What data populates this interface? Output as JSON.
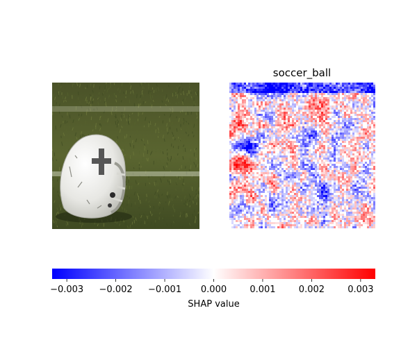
{
  "chart_data": {
    "type": "heatmap",
    "panels": [
      {
        "title": "",
        "content": "photo",
        "description_tokens": [
          "football-helmet",
          "grass-field"
        ]
      },
      {
        "title": "soccer_ball",
        "content": "shap-heatmap"
      }
    ],
    "colorbar": {
      "label": "SHAP value",
      "range": [
        -0.0033,
        0.0033
      ],
      "ticks": [
        -0.003,
        -0.002,
        -0.001,
        0.0,
        0.001,
        0.002,
        0.003
      ],
      "tick_labels": [
        "−0.003",
        "−0.002",
        "−0.001",
        "0.000",
        "0.001",
        "0.002",
        "0.003"
      ],
      "colors": {
        "negative": "#0000ff",
        "zero": "#ffffff",
        "positive": "#ff0000"
      }
    }
  },
  "colors": {
    "grass_dark": "#3e4a22",
    "grass_mid": "#56622e",
    "grass_light": "#6f7a3c",
    "helmet": "#eeeeec",
    "field_line": "#c9cdb6"
  }
}
